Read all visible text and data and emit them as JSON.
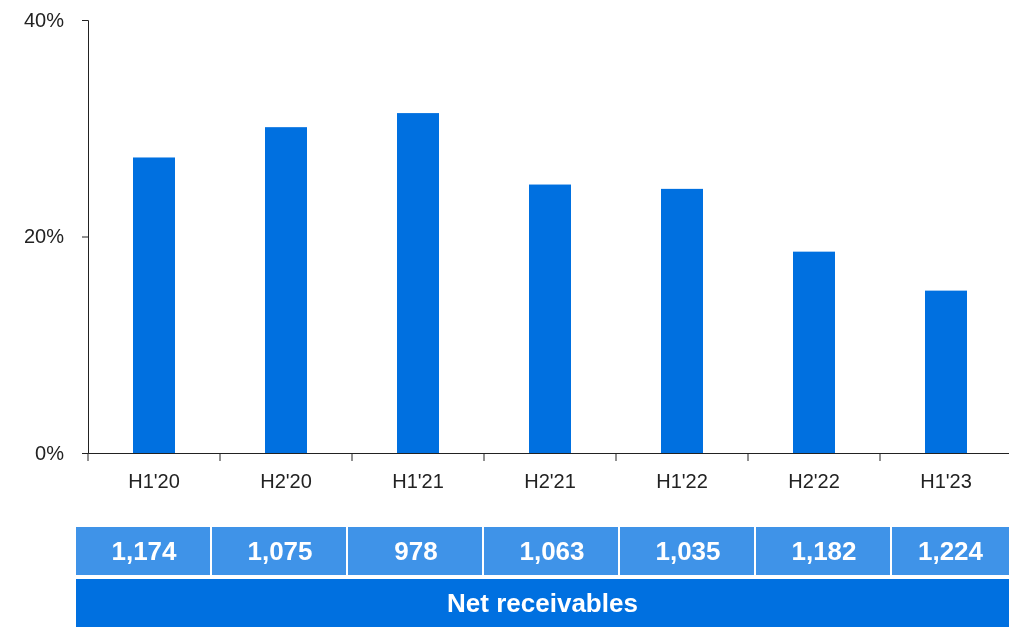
{
  "chart_data": {
    "type": "bar",
    "categories": [
      "H1'20",
      "H2'20",
      "H1'21",
      "H2'21",
      "H1'22",
      "H2'22",
      "H1'23"
    ],
    "values": [
      27.3,
      30.1,
      31.4,
      24.8,
      24.4,
      18.6,
      15.0
    ],
    "color": "#0070e0",
    "ylim": [
      0,
      40
    ],
    "yticks": [
      {
        "value": 0,
        "label": "0%"
      },
      {
        "value": 20,
        "label": "20%"
      },
      {
        "value": 40,
        "label": "40%"
      }
    ],
    "grid": false,
    "annotations": [
      "1,174",
      "1,075",
      "978",
      "1,063",
      "1,035",
      "1,182",
      "1,224",
      "Net receivables"
    ]
  }
}
